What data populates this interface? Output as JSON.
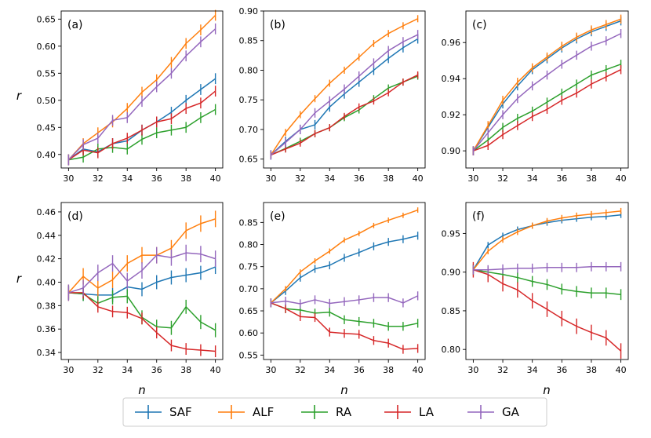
{
  "figure": {
    "xlabel": "n",
    "ylabel": "r",
    "legend": [
      {
        "name": "SAF",
        "color": "#1f77b4"
      },
      {
        "name": "ALF",
        "color": "#ff7f0e"
      },
      {
        "name": "RA",
        "color": "#2ca02c"
      },
      {
        "name": "LA",
        "color": "#d62728"
      },
      {
        "name": "GA",
        "color": "#9467bd"
      }
    ]
  },
  "chart_data": [
    {
      "type": "line",
      "label": "(a)",
      "x": [
        30,
        31,
        32,
        33,
        34,
        35,
        36,
        37,
        38,
        39,
        40
      ],
      "xlim": [
        29.5,
        40.5
      ],
      "ylim": [
        0.375,
        0.665
      ],
      "xticks": [
        30,
        32,
        34,
        36,
        38,
        40
      ],
      "yticks": [
        0.4,
        0.45,
        0.5,
        0.55,
        0.6,
        0.65
      ],
      "ytick_labels": [
        "0.40",
        "0.45",
        "0.50",
        "0.55",
        "0.60",
        "0.65"
      ],
      "series": [
        {
          "name": "SAF",
          "values": [
            0.39,
            0.41,
            0.405,
            0.42,
            0.425,
            0.445,
            0.46,
            0.478,
            0.5,
            0.52,
            0.54
          ],
          "err": 0.01
        },
        {
          "name": "ALF",
          "values": [
            0.39,
            0.42,
            0.44,
            0.46,
            0.485,
            0.515,
            0.538,
            0.57,
            0.605,
            0.63,
            0.657
          ],
          "err": 0.01
        },
        {
          "name": "RA",
          "values": [
            0.39,
            0.395,
            0.41,
            0.413,
            0.41,
            0.428,
            0.44,
            0.445,
            0.45,
            0.468,
            0.483
          ],
          "err": 0.01
        },
        {
          "name": "LA",
          "values": [
            0.39,
            0.408,
            0.403,
            0.42,
            0.43,
            0.445,
            0.46,
            0.466,
            0.485,
            0.495,
            0.517
          ],
          "err": 0.01
        },
        {
          "name": "GA",
          "values": [
            0.39,
            0.418,
            0.43,
            0.463,
            0.468,
            0.498,
            0.525,
            0.55,
            0.582,
            0.608,
            0.632
          ],
          "err": 0.01
        }
      ]
    },
    {
      "type": "line",
      "label": "(b)",
      "x": [
        30,
        31,
        32,
        33,
        34,
        35,
        36,
        37,
        38,
        39,
        40
      ],
      "xlim": [
        29.5,
        40.5
      ],
      "ylim": [
        0.635,
        0.9
      ],
      "xticks": [
        30,
        32,
        34,
        36,
        38,
        40
      ],
      "yticks": [
        0.65,
        0.7,
        0.75,
        0.8,
        0.85,
        0.9
      ],
      "ytick_labels": [
        "0.65",
        "0.70",
        "0.75",
        "0.80",
        "0.85",
        "0.90"
      ],
      "series": [
        {
          "name": "SAF",
          "values": [
            0.657,
            0.68,
            0.7,
            0.708,
            0.738,
            0.76,
            0.78,
            0.8,
            0.82,
            0.838,
            0.853
          ],
          "err": 0.008
        },
        {
          "name": "ALF",
          "values": [
            0.657,
            0.695,
            0.725,
            0.752,
            0.778,
            0.8,
            0.822,
            0.845,
            0.862,
            0.875,
            0.887
          ],
          "err": 0.006
        },
        {
          "name": "RA",
          "values": [
            0.657,
            0.668,
            0.68,
            0.693,
            0.703,
            0.72,
            0.733,
            0.752,
            0.77,
            0.78,
            0.79
          ],
          "err": 0.006
        },
        {
          "name": "LA",
          "values": [
            0.657,
            0.667,
            0.677,
            0.693,
            0.703,
            0.722,
            0.738,
            0.748,
            0.762,
            0.78,
            0.792
          ],
          "err": 0.006
        },
        {
          "name": "GA",
          "values": [
            0.657,
            0.678,
            0.7,
            0.728,
            0.748,
            0.768,
            0.79,
            0.812,
            0.833,
            0.848,
            0.86
          ],
          "err": 0.008
        }
      ]
    },
    {
      "type": "line",
      "label": "(c)",
      "x": [
        30,
        31,
        32,
        33,
        34,
        35,
        36,
        37,
        38,
        39,
        40
      ],
      "xlim": [
        29.5,
        40.5
      ],
      "ylim": [
        0.8905,
        0.9775
      ],
      "xticks": [
        30,
        32,
        34,
        36,
        38,
        40
      ],
      "yticks": [
        0.9,
        0.92,
        0.94,
        0.96
      ],
      "ytick_labels": [
        "0.90",
        "0.92",
        "0.94",
        "0.96"
      ],
      "series": [
        {
          "name": "SAF",
          "values": [
            0.9,
            0.913,
            0.926,
            0.936,
            0.945,
            0.951,
            0.957,
            0.962,
            0.966,
            0.969,
            0.972
          ],
          "err": 0.0025
        },
        {
          "name": "ALF",
          "values": [
            0.9,
            0.914,
            0.928,
            0.938,
            0.946,
            0.952,
            0.958,
            0.963,
            0.967,
            0.97,
            0.973
          ],
          "err": 0.0025
        },
        {
          "name": "RA",
          "values": [
            0.9,
            0.906,
            0.913,
            0.918,
            0.922,
            0.927,
            0.932,
            0.937,
            0.942,
            0.945,
            0.948
          ],
          "err": 0.0025
        },
        {
          "name": "LA",
          "values": [
            0.9,
            0.903,
            0.909,
            0.914,
            0.919,
            0.923,
            0.928,
            0.932,
            0.937,
            0.941,
            0.945
          ],
          "err": 0.0025
        },
        {
          "name": "GA",
          "values": [
            0.9,
            0.91,
            0.92,
            0.929,
            0.936,
            0.942,
            0.948,
            0.953,
            0.958,
            0.961,
            0.965
          ],
          "err": 0.0025
        }
      ]
    },
    {
      "type": "line",
      "label": "(d)",
      "x": [
        30,
        31,
        32,
        33,
        34,
        35,
        36,
        37,
        38,
        39,
        40
      ],
      "xlim": [
        29.5,
        40.5
      ],
      "ylim": [
        0.334,
        0.468
      ],
      "xticks": [
        30,
        32,
        34,
        36,
        38,
        40
      ],
      "yticks": [
        0.34,
        0.36,
        0.38,
        0.4,
        0.42,
        0.44,
        0.46
      ],
      "ytick_labels": [
        "0.34",
        "0.36",
        "0.38",
        "0.40",
        "0.42",
        "0.44",
        "0.46"
      ],
      "series": [
        {
          "name": "SAF",
          "values": [
            0.391,
            0.39,
            0.389,
            0.389,
            0.396,
            0.394,
            0.4,
            0.404,
            0.406,
            0.408,
            0.413
          ],
          "err": 0.006
        },
        {
          "name": "ALF",
          "values": [
            0.391,
            0.405,
            0.395,
            0.402,
            0.416,
            0.423,
            0.423,
            0.429,
            0.444,
            0.45,
            0.454
          ],
          "err": 0.007
        },
        {
          "name": "RA",
          "values": [
            0.391,
            0.39,
            0.382,
            0.387,
            0.388,
            0.37,
            0.362,
            0.361,
            0.379,
            0.366,
            0.359
          ],
          "err": 0.006
        },
        {
          "name": "LA",
          "values": [
            0.391,
            0.391,
            0.379,
            0.375,
            0.374,
            0.369,
            0.357,
            0.346,
            0.343,
            0.342,
            0.341
          ],
          "err": 0.005
        },
        {
          "name": "GA",
          "values": [
            0.391,
            0.395,
            0.408,
            0.416,
            0.401,
            0.41,
            0.423,
            0.421,
            0.425,
            0.424,
            0.42
          ],
          "err": 0.007
        }
      ]
    },
    {
      "type": "line",
      "label": "(e)",
      "x": [
        30,
        31,
        32,
        33,
        34,
        35,
        36,
        37,
        38,
        39,
        40
      ],
      "xlim": [
        29.5,
        40.5
      ],
      "ylim": [
        0.54,
        0.895
      ],
      "xticks": [
        30,
        32,
        34,
        36,
        38,
        40
      ],
      "yticks": [
        0.55,
        0.6,
        0.65,
        0.7,
        0.75,
        0.8,
        0.85
      ],
      "ytick_labels": [
        "0.55",
        "0.60",
        "0.65",
        "0.70",
        "0.75",
        "0.80",
        "0.85"
      ],
      "series": [
        {
          "name": "SAF",
          "values": [
            0.668,
            0.695,
            0.725,
            0.745,
            0.753,
            0.77,
            0.782,
            0.796,
            0.806,
            0.812,
            0.82
          ],
          "err": 0.009
        },
        {
          "name": "ALF",
          "values": [
            0.668,
            0.7,
            0.738,
            0.763,
            0.785,
            0.81,
            0.825,
            0.843,
            0.855,
            0.866,
            0.878
          ],
          "err": 0.006
        },
        {
          "name": "RA",
          "values": [
            0.668,
            0.655,
            0.652,
            0.645,
            0.647,
            0.63,
            0.626,
            0.622,
            0.615,
            0.615,
            0.622
          ],
          "err": 0.01
        },
        {
          "name": "LA",
          "values": [
            0.668,
            0.655,
            0.637,
            0.635,
            0.602,
            0.599,
            0.597,
            0.583,
            0.577,
            0.563,
            0.565
          ],
          "err": 0.01
        },
        {
          "name": "GA",
          "values": [
            0.668,
            0.672,
            0.666,
            0.675,
            0.667,
            0.671,
            0.675,
            0.68,
            0.68,
            0.668,
            0.684
          ],
          "err": 0.01
        }
      ]
    },
    {
      "type": "line",
      "label": "(f)",
      "x": [
        30,
        31,
        32,
        33,
        34,
        35,
        36,
        37,
        38,
        39,
        40
      ],
      "xlim": [
        29.5,
        40.5
      ],
      "ylim": [
        0.787,
        0.99
      ],
      "xticks": [
        30,
        32,
        34,
        36,
        38,
        40
      ],
      "yticks": [
        0.8,
        0.85,
        0.9,
        0.95
      ],
      "ytick_labels": [
        "0.80",
        "0.85",
        "0.90",
        "0.95"
      ],
      "series": [
        {
          "name": "SAF",
          "values": [
            0.903,
            0.935,
            0.947,
            0.955,
            0.96,
            0.964,
            0.967,
            0.969,
            0.971,
            0.972,
            0.974
          ],
          "err": 0.004
        },
        {
          "name": "ALF",
          "values": [
            0.903,
            0.927,
            0.942,
            0.952,
            0.96,
            0.966,
            0.97,
            0.973,
            0.975,
            0.977,
            0.979
          ],
          "err": 0.004
        },
        {
          "name": "RA",
          "values": [
            0.903,
            0.9,
            0.897,
            0.893,
            0.888,
            0.884,
            0.878,
            0.875,
            0.873,
            0.873,
            0.871
          ],
          "err": 0.007
        },
        {
          "name": "LA",
          "values": [
            0.903,
            0.897,
            0.885,
            0.877,
            0.863,
            0.852,
            0.84,
            0.83,
            0.822,
            0.815,
            0.798
          ],
          "err": 0.01
        },
        {
          "name": "GA",
          "values": [
            0.903,
            0.903,
            0.904,
            0.905,
            0.905,
            0.906,
            0.906,
            0.906,
            0.907,
            0.907,
            0.907
          ],
          "err": 0.006
        }
      ]
    }
  ]
}
